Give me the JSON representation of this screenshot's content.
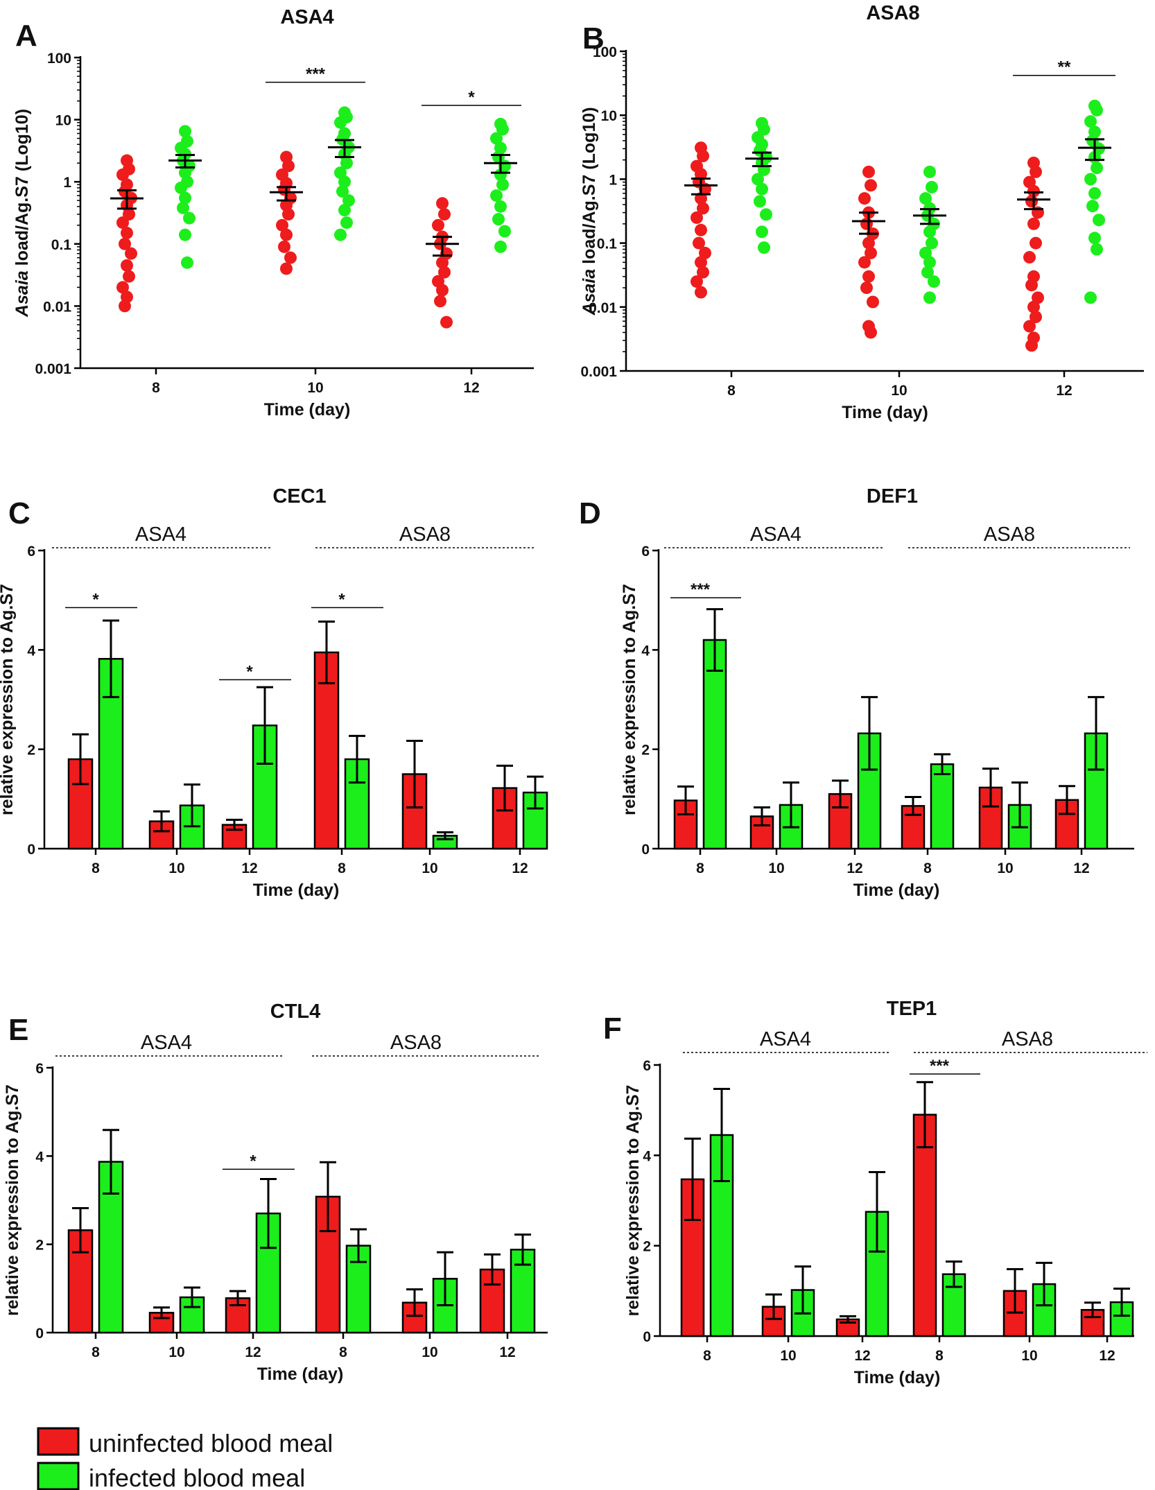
{
  "figure": {
    "legend": [
      {
        "label": "uninfected blood meal",
        "color": "#ee1c1c"
      },
      {
        "label": "infected blood meal",
        "color": "#1cee1c"
      }
    ]
  },
  "chart_data": [
    {
      "panel": "A",
      "type": "scatter",
      "title": "ASA4",
      "xlabel": "Time (day)",
      "ylabel_italic": "Asaia",
      "ylabel_rest": " load/Ag.S7 (Log10)",
      "yscale": "log",
      "ylim": [
        0.001,
        100
      ],
      "yticks": [
        "0.001",
        "0.01",
        "0.1",
        "1",
        "10",
        "100"
      ],
      "categories": [
        "8",
        "10",
        "12"
      ],
      "series": [
        {
          "name": "uninfected blood meal",
          "groups": [
            {
              "x": "8",
              "mean": 0.54,
              "sem_low": 0.37,
              "sem_high": 0.73,
              "points": [
                2.2,
                1.6,
                1.3,
                0.9,
                0.7,
                0.55,
                0.42,
                0.3,
                0.22,
                0.15,
                0.1,
                0.07,
                0.045,
                0.03,
                0.02,
                0.014,
                0.01
              ]
            },
            {
              "x": "10",
              "mean": 0.68,
              "sem_low": 0.5,
              "sem_high": 0.82,
              "points": [
                2.5,
                1.8,
                1.3,
                0.95,
                0.75,
                0.55,
                0.42,
                0.3,
                0.2,
                0.14,
                0.09,
                0.06,
                0.04
              ]
            },
            {
              "x": "12",
              "mean": 0.1,
              "sem_low": 0.065,
              "sem_high": 0.13,
              "points": [
                0.45,
                0.3,
                0.2,
                0.13,
                0.1,
                0.07,
                0.05,
                0.035,
                0.025,
                0.018,
                0.012,
                0.0055
              ]
            }
          ]
        },
        {
          "name": "infected blood meal",
          "groups": [
            {
              "x": "8",
              "mean": 2.2,
              "sem_low": 1.7,
              "sem_high": 2.7,
              "points": [
                6.5,
                4.5,
                3.5,
                2.8,
                2.2,
                1.8,
                1.4,
                1.0,
                0.8,
                0.55,
                0.38,
                0.26,
                0.14,
                0.05
              ]
            },
            {
              "x": "10",
              "mean": 3.6,
              "sem_low": 2.5,
              "sem_high": 4.7,
              "points": [
                13,
                11,
                9,
                6,
                4.8,
                3.6,
                2.8,
                2.0,
                1.4,
                1.0,
                0.7,
                0.5,
                0.35,
                0.22,
                0.14
              ]
            },
            {
              "x": "12",
              "mean": 2.0,
              "sem_low": 1.4,
              "sem_high": 2.7,
              "points": [
                8.5,
                7,
                5,
                3.5,
                2.5,
                1.8,
                1.3,
                0.9,
                0.6,
                0.4,
                0.25,
                0.16,
                0.09
              ]
            }
          ]
        }
      ],
      "significance": [
        {
          "category": "10",
          "label": "***",
          "y": 40
        },
        {
          "category": "12",
          "label": "*",
          "y": 17
        }
      ]
    },
    {
      "panel": "B",
      "type": "scatter",
      "title": "ASA8",
      "xlabel": "Time (day)",
      "ylabel_italic": "Asaia",
      "ylabel_rest": " load/Ag.S7 (Log10)",
      "yscale": "log",
      "ylim": [
        0.001,
        100
      ],
      "yticks": [
        "0.001",
        "0.01",
        "0.1",
        "1",
        "10",
        "100"
      ],
      "categories": [
        "8",
        "10",
        "12"
      ],
      "series": [
        {
          "name": "uninfected blood meal",
          "groups": [
            {
              "x": "8",
              "mean": 0.8,
              "sem_low": 0.58,
              "sem_high": 1.02,
              "points": [
                3.1,
                2.3,
                1.6,
                1.2,
                0.9,
                0.7,
                0.5,
                0.35,
                0.25,
                0.16,
                0.1,
                0.07,
                0.05,
                0.035,
                0.025,
                0.017
              ]
            },
            {
              "x": "10",
              "mean": 0.22,
              "sem_low": 0.14,
              "sem_high": 0.3,
              "points": [
                1.3,
                0.8,
                0.5,
                0.3,
                0.2,
                0.14,
                0.1,
                0.07,
                0.05,
                0.03,
                0.02,
                0.012,
                0.005,
                0.004
              ]
            },
            {
              "x": "12",
              "mean": 0.48,
              "sem_low": 0.34,
              "sem_high": 0.62,
              "points": [
                1.8,
                1.3,
                0.9,
                0.65,
                0.45,
                0.3,
                0.2,
                0.1,
                0.06,
                0.03,
                0.022,
                0.014,
                0.01,
                0.007,
                0.005,
                0.0033,
                0.0025
              ]
            }
          ]
        },
        {
          "name": "infected blood meal",
          "groups": [
            {
              "x": "8",
              "mean": 2.1,
              "sem_low": 1.6,
              "sem_high": 2.6,
              "points": [
                7.5,
                6,
                4.5,
                3.5,
                2.8,
                2.2,
                1.8,
                1.4,
                1.0,
                0.7,
                0.45,
                0.28,
                0.15,
                0.085
              ]
            },
            {
              "x": "10",
              "mean": 0.27,
              "sem_low": 0.2,
              "sem_high": 0.34,
              "points": [
                1.3,
                0.75,
                0.5,
                0.35,
                0.27,
                0.2,
                0.15,
                0.1,
                0.07,
                0.05,
                0.035,
                0.025,
                0.014
              ]
            },
            {
              "x": "12",
              "mean": 3.1,
              "sem_low": 2.0,
              "sem_high": 4.2,
              "points": [
                14,
                12,
                8,
                5.5,
                4.0,
                3.0,
                2.2,
                1.5,
                1.0,
                0.6,
                0.38,
                0.23,
                0.12,
                0.08,
                0.014
              ]
            }
          ]
        }
      ],
      "significance": [
        {
          "category": "12",
          "label": "**",
          "y": 42
        }
      ]
    },
    {
      "panel": "C",
      "type": "bar",
      "title": "CEC1",
      "xlabel": "Time (day)",
      "ylabel": "relative expression to Ag.S7",
      "ylim": [
        0,
        6
      ],
      "yticks": [
        "0",
        "2",
        "4",
        "6"
      ],
      "groups": [
        "ASA4",
        "ASA8"
      ],
      "categories": [
        "8",
        "10",
        "12",
        "8",
        "10",
        "12"
      ],
      "series": [
        {
          "name": "uninfected blood meal",
          "values": [
            1.8,
            0.55,
            0.48,
            3.95,
            1.5,
            1.22
          ],
          "errors": [
            0.5,
            0.2,
            0.1,
            0.62,
            0.67,
            0.45
          ]
        },
        {
          "name": "infected blood meal",
          "values": [
            3.82,
            0.87,
            2.48,
            1.8,
            0.26,
            1.13
          ],
          "errors": [
            0.77,
            0.42,
            0.77,
            0.47,
            0.07,
            0.32
          ]
        }
      ],
      "significance": [
        {
          "category_index": 0,
          "label": "*",
          "y": 4.85
        },
        {
          "category_index": 2,
          "label": "*",
          "y": 3.4
        },
        {
          "category_index": 3,
          "label": "*",
          "y": 4.85
        }
      ]
    },
    {
      "panel": "D",
      "type": "bar",
      "title": "DEF1",
      "xlabel": "Time (day)",
      "ylabel": "relative expression to Ag.S7",
      "ylim": [
        0,
        6
      ],
      "yticks": [
        "0",
        "2",
        "4",
        "6"
      ],
      "groups": [
        "ASA4",
        "ASA8"
      ],
      "categories": [
        "8",
        "10",
        "12",
        "8",
        "10",
        "12"
      ],
      "series": [
        {
          "name": "uninfected blood meal",
          "values": [
            0.97,
            0.65,
            1.1,
            0.86,
            1.23,
            0.98
          ],
          "errors": [
            0.28,
            0.18,
            0.27,
            0.18,
            0.38,
            0.28
          ]
        },
        {
          "name": "infected blood meal",
          "values": [
            4.2,
            0.88,
            2.32,
            1.7,
            0.88,
            2.32
          ],
          "errors": [
            0.62,
            0.45,
            0.73,
            0.2,
            0.45,
            0.73
          ]
        }
      ],
      "significance": [
        {
          "category_index": 0,
          "label": "***",
          "y": 5.05
        }
      ]
    },
    {
      "panel": "E",
      "type": "bar",
      "title": "CTL4",
      "xlabel": "Time (day)",
      "ylabel": "relative expression to Ag.S7",
      "ylim": [
        0,
        6
      ],
      "yticks": [
        "0",
        "2",
        "4",
        "6"
      ],
      "groups": [
        "ASA4",
        "ASA8"
      ],
      "categories": [
        "8",
        "10",
        "12",
        "8",
        "10",
        "12"
      ],
      "series": [
        {
          "name": "uninfected blood meal",
          "values": [
            2.32,
            0.45,
            0.78,
            3.08,
            0.68,
            1.43
          ],
          "errors": [
            0.5,
            0.12,
            0.16,
            0.78,
            0.3,
            0.34
          ]
        },
        {
          "name": "infected blood meal",
          "values": [
            3.87,
            0.8,
            2.7,
            1.97,
            1.22,
            1.88
          ],
          "errors": [
            0.72,
            0.22,
            0.78,
            0.37,
            0.6,
            0.34
          ]
        }
      ],
      "significance": [
        {
          "category_index": 2,
          "label": "*",
          "y": 3.7
        }
      ]
    },
    {
      "panel": "F",
      "type": "bar",
      "title": "TEP1",
      "xlabel": "Time (day)",
      "ylabel": "relative expression to Ag.S7",
      "ylim": [
        0,
        6
      ],
      "yticks": [
        "0",
        "2",
        "4",
        "6"
      ],
      "groups": [
        "ASA4",
        "ASA8"
      ],
      "categories": [
        "8",
        "10",
        "12",
        "8",
        "10",
        "12"
      ],
      "series": [
        {
          "name": "uninfected blood meal",
          "values": [
            3.47,
            0.65,
            0.37,
            4.9,
            1.0,
            0.58
          ],
          "errors": [
            0.9,
            0.27,
            0.07,
            0.72,
            0.48,
            0.16
          ]
        },
        {
          "name": "infected blood meal",
          "values": [
            4.45,
            1.02,
            2.75,
            1.37,
            1.15,
            0.75
          ],
          "errors": [
            1.02,
            0.52,
            0.88,
            0.28,
            0.47,
            0.3
          ]
        }
      ],
      "significance": [
        {
          "category_index": 3,
          "label": "***",
          "y": 5.8
        }
      ]
    }
  ]
}
